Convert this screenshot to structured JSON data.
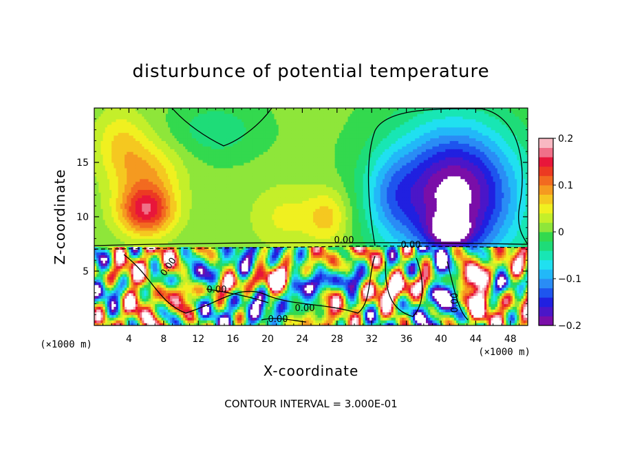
{
  "chart_data": {
    "type": "heatmap",
    "title": "disturbunce of potential temperature",
    "xlabel": "X-coordinate",
    "ylabel": "Z-coordinate",
    "x_unit": "(×1000 m)",
    "y_unit": "",
    "xlim": [
      0,
      50
    ],
    "ylim": [
      0,
      20
    ],
    "x_ticks": [
      4,
      8,
      12,
      16,
      20,
      24,
      28,
      32,
      36,
      40,
      44,
      48
    ],
    "y_ticks": [
      5,
      10,
      15
    ],
    "colorbar": {
      "range": [
        -0.2,
        0.2
      ],
      "tick_values": [
        0.2,
        0.1,
        0,
        -0.1,
        -0.2
      ],
      "tick_labels": [
        "0.2",
        "0.1",
        "0",
        "−0.1",
        "−0.2"
      ],
      "colors": [
        "#7a0ea8",
        "#4b16c8",
        "#2020e0",
        "#1e55ee",
        "#2a8cf5",
        "#22b8f8",
        "#20e0f0",
        "#18e6b4",
        "#1edc78",
        "#33d94e",
        "#8ee63a",
        "#c4ef2a",
        "#f0f020",
        "#f5c820",
        "#f59a20",
        "#f26a20",
        "#ec3a22",
        "#e8163a",
        "#f07088",
        "#f8b8c2"
      ]
    },
    "contour_interval_text": "CONTOUR INTERVAL = 3.000E-01",
    "contour_labels": [
      "0.00"
    ],
    "grid": false
  }
}
